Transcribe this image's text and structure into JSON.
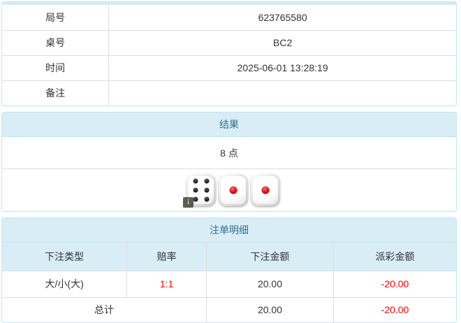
{
  "info_table": {
    "rows": [
      {
        "label": "局号",
        "value": "623765580"
      },
      {
        "label": "桌号",
        "value": "BC2"
      },
      {
        "label": "时间",
        "value": "2025-06-01 13:28:19"
      },
      {
        "label": "备注",
        "value": ""
      }
    ]
  },
  "result_panel": {
    "title": "结果",
    "points": "8 点",
    "dice": [
      {
        "value": 6,
        "pip_color": "#1a1a1a"
      },
      {
        "value": 1,
        "pip_color": "#cc0011"
      },
      {
        "value": 1,
        "pip_color": "#cc0011"
      }
    ],
    "info_badge": "i"
  },
  "bets_panel": {
    "title": "注单明细",
    "columns": [
      "下注类型",
      "赔率",
      "下注金额",
      "派彩金额"
    ],
    "rows": [
      {
        "type": "大/小(大)",
        "odds": "1:1",
        "bet": "20.00",
        "payout": "-20.00"
      }
    ],
    "total": {
      "label": "总计",
      "bet": "20.00",
      "payout": "-20.00"
    }
  },
  "colors": {
    "panel_border": "#bce8f1",
    "heading_bg": "#d9edf7",
    "heading_text": "#31708f",
    "grid_line": "#dddddd",
    "negative_text": "#ff0000"
  }
}
